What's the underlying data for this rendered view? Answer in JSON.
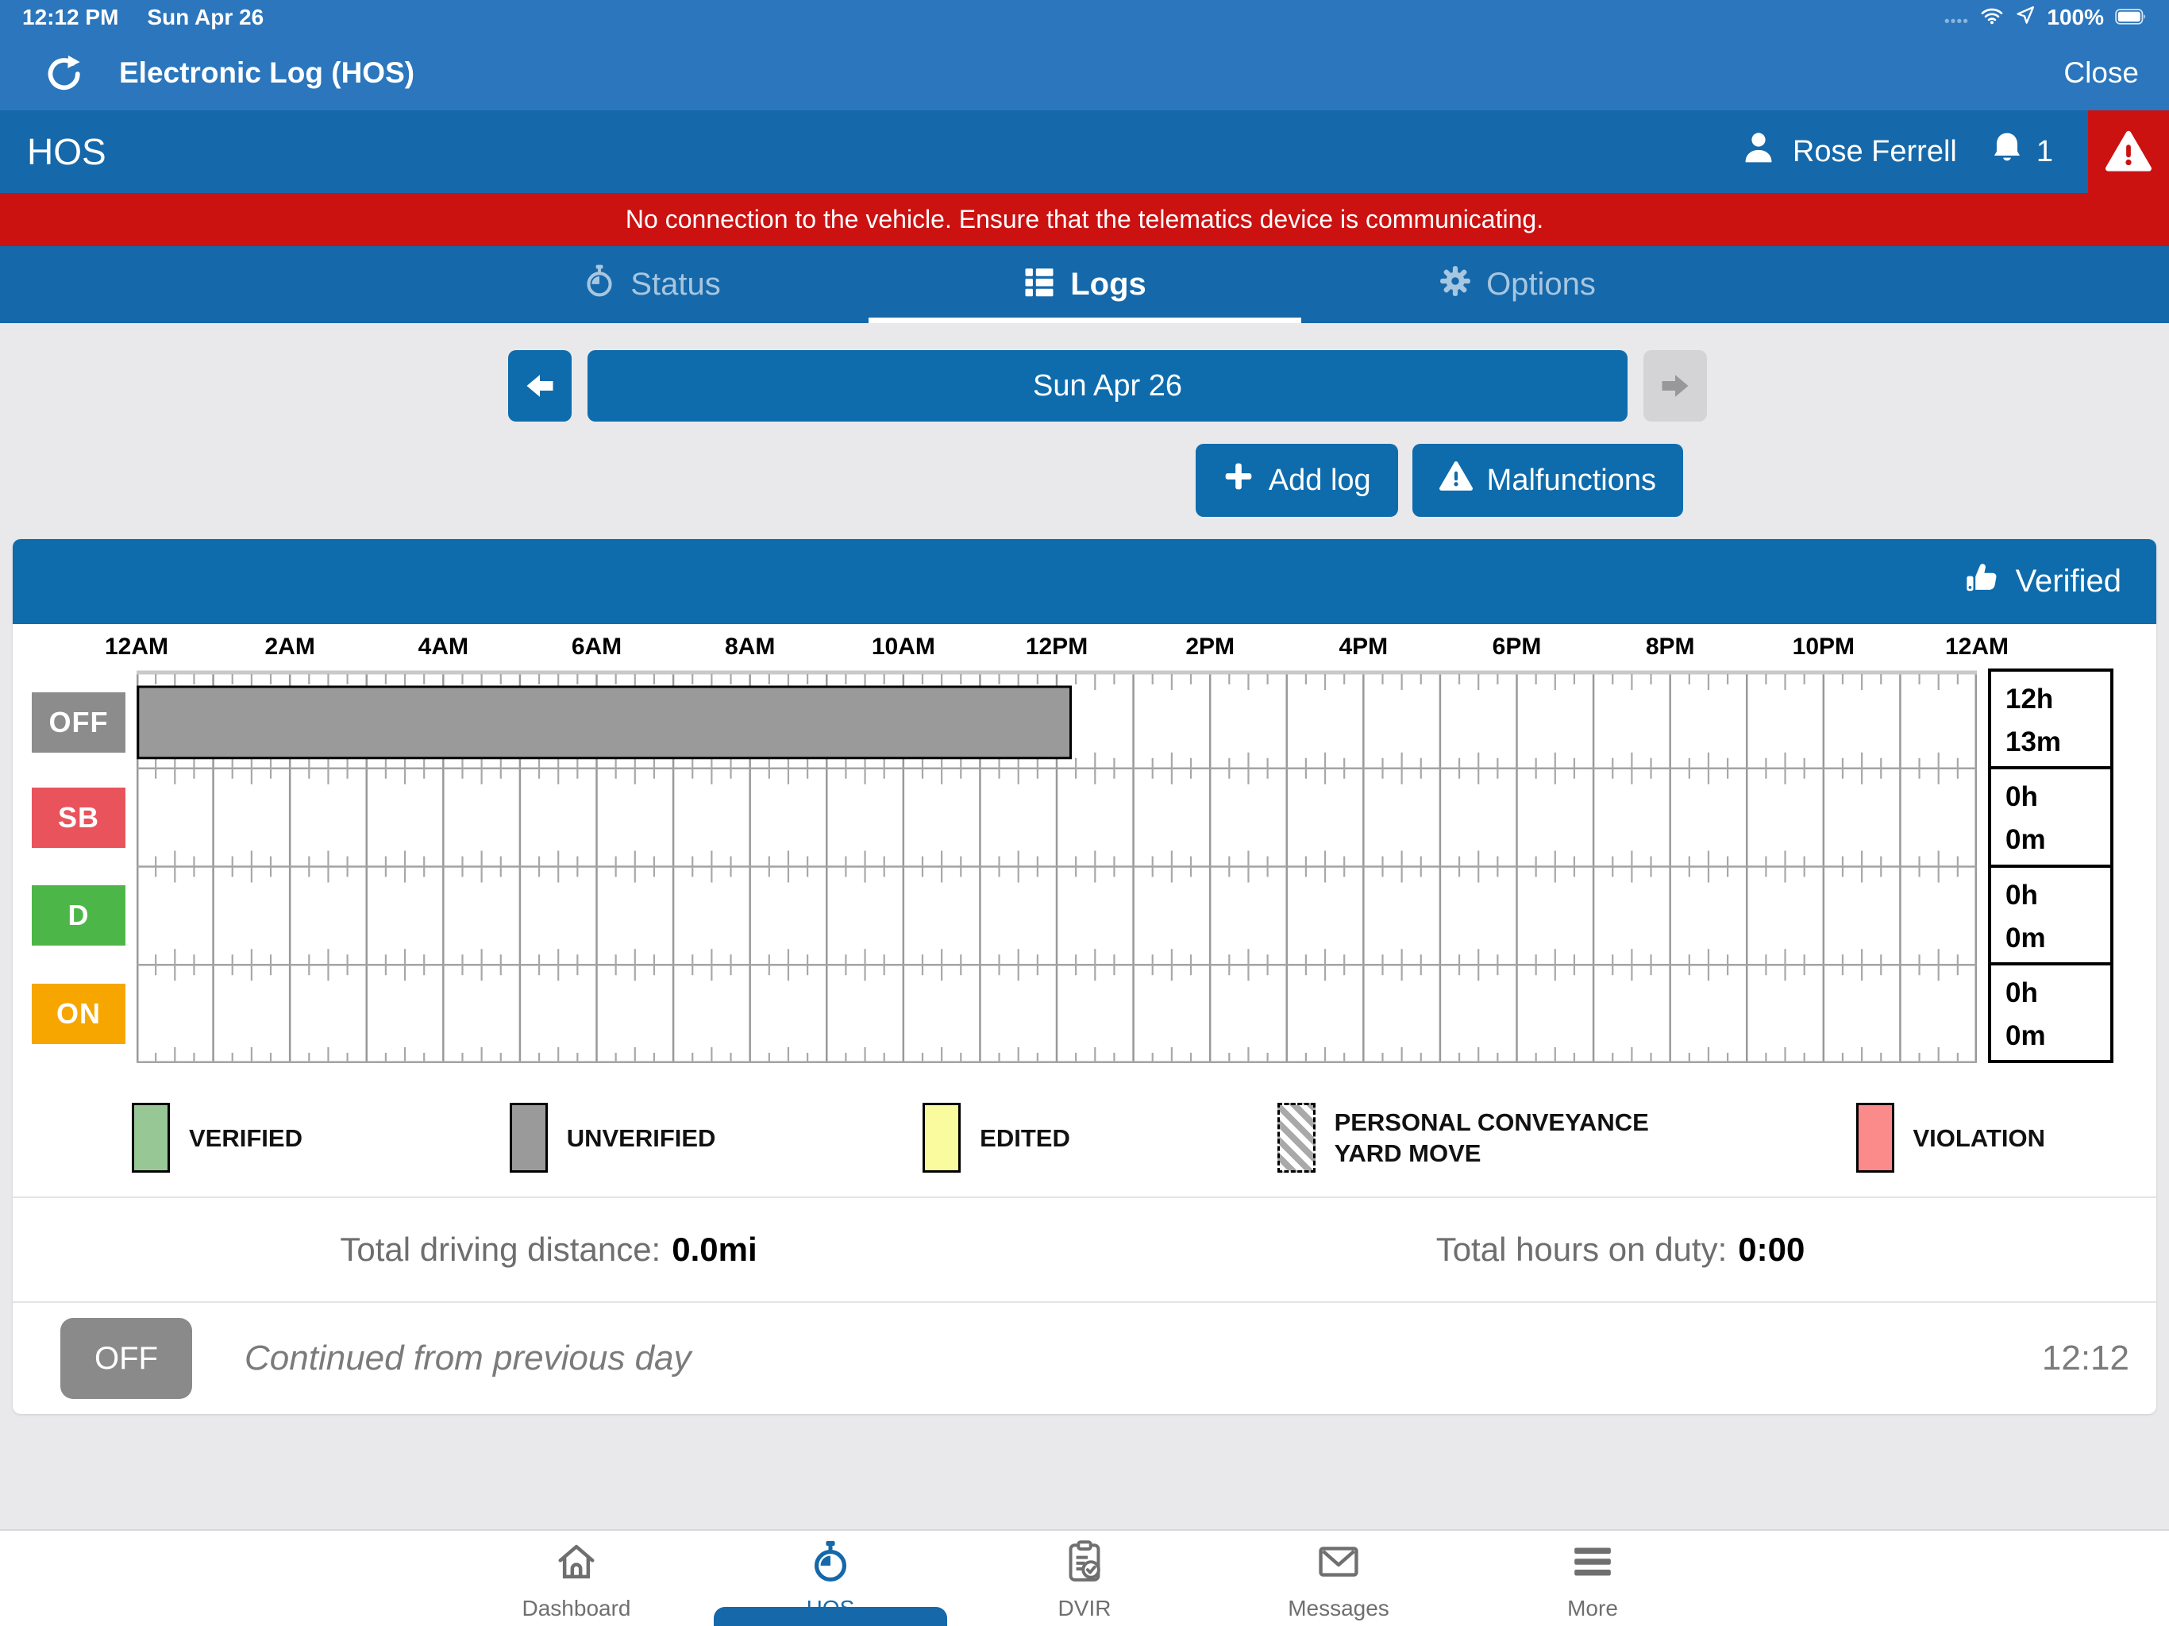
{
  "colors": {
    "header_blue": "#2B76BD",
    "bar_blue": "#1568A9",
    "button_blue": "#0E6CAD",
    "alert_red": "#CC1111"
  },
  "status_bar": {
    "time": "12:12 PM",
    "date": "Sun Apr 26",
    "battery_percent": "100%"
  },
  "app_header": {
    "title": "Electronic Log (HOS)",
    "close_label": "Close"
  },
  "hos_bar": {
    "title": "HOS",
    "user_name": "Rose Ferrell",
    "notification_count": "1"
  },
  "alert_banner": {
    "message": "No connection to the vehicle. Ensure that the telematics device is communicating."
  },
  "tab_bar": {
    "tabs": [
      {
        "label": "Status",
        "icon": "stopwatch-icon",
        "active": false
      },
      {
        "label": "Logs",
        "icon": "list-icon",
        "active": true
      },
      {
        "label": "Options",
        "icon": "gear-icon",
        "active": false
      }
    ]
  },
  "date_nav": {
    "current_date": "Sun Apr 26",
    "prev_enabled": true,
    "next_enabled": false
  },
  "actions": {
    "add_log": "Add log",
    "malfunctions": "Malfunctions"
  },
  "log_card": {
    "verified_label": "Verified"
  },
  "chart_data": {
    "type": "hos-duty-timeline",
    "hours_span": 24,
    "x_tick_labels": [
      "12AM",
      "2AM",
      "4AM",
      "6AM",
      "8AM",
      "10AM",
      "12PM",
      "2PM",
      "4PM",
      "6PM",
      "8PM",
      "10PM",
      "12AM"
    ],
    "rows": [
      {
        "code": "OFF",
        "badge_color": "#8C8C8C",
        "total_hours": "12h",
        "total_minutes": "13m",
        "segments": [
          {
            "start_hour": 0,
            "end_hour": 12.2,
            "fill": "#9A9A9A",
            "style": "unverified"
          }
        ]
      },
      {
        "code": "SB",
        "badge_color": "#E9545C",
        "total_hours": "0h",
        "total_minutes": "0m",
        "segments": []
      },
      {
        "code": "D",
        "badge_color": "#4CB748",
        "total_hours": "0h",
        "total_minutes": "0m",
        "segments": []
      },
      {
        "code": "ON",
        "badge_color": "#F7A600",
        "total_hours": "0h",
        "total_minutes": "0m",
        "segments": []
      }
    ],
    "legend": [
      {
        "lines": [
          "VERIFIED"
        ],
        "swatch": "solid",
        "color": "#97C795"
      },
      {
        "lines": [
          "UNVERIFIED"
        ],
        "swatch": "solid",
        "color": "#9A9A9A"
      },
      {
        "lines": [
          "EDITED"
        ],
        "swatch": "solid",
        "color": "#FAFA9E"
      },
      {
        "lines": [
          "PERSONAL CONVEYANCE",
          "YARD MOVE"
        ],
        "swatch": "hatched",
        "color": "#A9A9A9"
      },
      {
        "lines": [
          "VIOLATION"
        ],
        "swatch": "solid",
        "color": "#FB8A8A"
      }
    ]
  },
  "summary": {
    "distance_label": "Total driving distance:",
    "distance_value": "0.0mi",
    "duty_label": "Total hours on duty:",
    "duty_value": "0:00"
  },
  "log_entries": [
    {
      "status": "OFF",
      "badge_color": "#8A8A8A",
      "description": "Continued from previous day",
      "time": "12:12"
    }
  ],
  "bottom_nav": {
    "items": [
      {
        "label": "Dashboard",
        "icon": "home-icon",
        "active": false
      },
      {
        "label": "HOS",
        "icon": "stopwatch-icon",
        "active": true
      },
      {
        "label": "DVIR",
        "icon": "clipboard-check-icon",
        "active": false
      },
      {
        "label": "Messages",
        "icon": "envelope-icon",
        "active": false
      },
      {
        "label": "More",
        "icon": "menu-icon",
        "active": false
      }
    ]
  }
}
